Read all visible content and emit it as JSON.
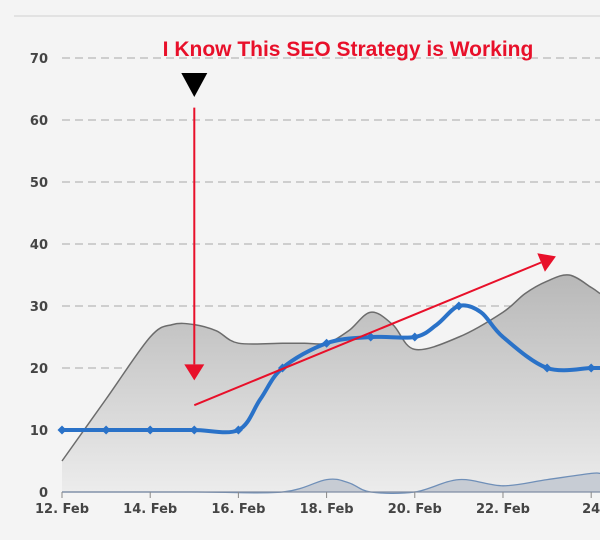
{
  "chart_data": {
    "type": "line",
    "title": "I Know This SEO Strategy is Working",
    "x_tick_labels": [
      "12. Feb",
      "14. Feb",
      "16. Feb",
      "18. Feb",
      "20. Feb",
      "22. Feb",
      "24"
    ],
    "y_tick_labels": [
      "0",
      "10",
      "20",
      "30",
      "40",
      "50",
      "60",
      "70"
    ],
    "xlim": [
      12,
      24.2
    ],
    "ylim": [
      0,
      70
    ],
    "grid": true,
    "legend": "none",
    "series": [
      {
        "role": "area",
        "color": "#8a8a8a",
        "x": [
          12,
          13,
          14,
          14.5,
          15,
          15.5,
          16,
          17,
          17.5,
          18,
          18.5,
          19,
          19.5,
          20,
          21,
          22,
          22.5,
          23,
          23.5,
          24,
          24.2
        ],
        "y": [
          5,
          15,
          25,
          27,
          27,
          26,
          24,
          24,
          24,
          24,
          26,
          29,
          27,
          23,
          25,
          29,
          32,
          34,
          35,
          33,
          32
        ]
      },
      {
        "role": "line",
        "color": "#2a72c8",
        "x": [
          12,
          13,
          14,
          15,
          16,
          16.5,
          17,
          18,
          19,
          20,
          20.5,
          21,
          21.5,
          22,
          23,
          24,
          24.2
        ],
        "y": [
          10,
          10,
          10,
          10,
          10,
          15,
          20,
          24,
          25,
          25,
          27,
          30,
          29,
          25,
          20,
          20,
          20
        ],
        "markers_x": [
          12,
          13,
          14,
          15,
          16,
          17,
          18,
          19,
          20,
          21,
          23,
          24
        ]
      },
      {
        "role": "baseline-area",
        "color": "#6f8fb8",
        "x": [
          12,
          15,
          17,
          18,
          18.5,
          19,
          20,
          21,
          22,
          23,
          24,
          24.2
        ],
        "y": [
          0,
          0,
          0,
          2,
          1.5,
          0,
          0,
          2,
          1,
          2,
          3,
          3
        ]
      }
    ],
    "annotations": [
      {
        "type": "arrow",
        "color": "#e8102a",
        "from": [
          15,
          62
        ],
        "to": [
          15,
          18
        ]
      },
      {
        "type": "arrow",
        "color": "#e8102a",
        "from": [
          15,
          14
        ],
        "to": [
          23.2,
          38
        ]
      },
      {
        "type": "marker-triangle",
        "color": "#000000",
        "at": [
          15,
          65
        ]
      }
    ]
  }
}
